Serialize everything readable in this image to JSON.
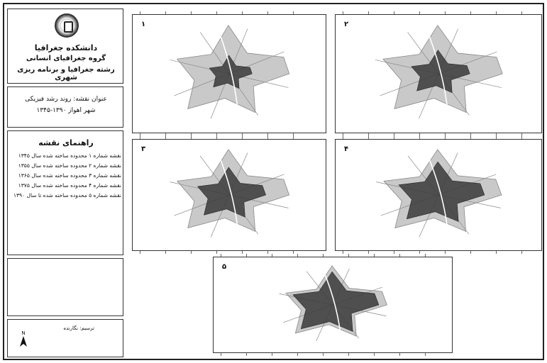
{
  "header": {
    "line1": "دانشکده جغرافیا",
    "line2": "گروه جغرافیای انسانی",
    "line3": "رشته جغرافیا و برنامه ریزی شهری"
  },
  "title_box": {
    "line1": "عنوان نقشه: روند رشد فیزیکی",
    "line2": "شهر اهواز ۱۳۹۰-۱۳۴۵"
  },
  "legend": {
    "title": "راهنمای نقشه",
    "rows": [
      "نقشه شماره ۱  محدوده ساخته شده سال ۱۳۴۵",
      "نقشه شماره ۲  محدوده ساخته شده سال ۱۳۵۵",
      "نقشه شماره ۳  محدوده ساخته شده سال ۱۳۶۵",
      "نقشه شماره ۴  محدوده ساخته شده سال ۱۳۷۵",
      "نقشه شماره ۵  محدوده ساخته شده تا سال ۱۳۹۰"
    ]
  },
  "footer": {
    "label": "ترسیم: نگارنده"
  },
  "maps": [
    {
      "number": "۱",
      "stage": 0.22
    },
    {
      "number": "۲",
      "stage": 0.4
    },
    {
      "number": "۳",
      "stage": 0.6
    },
    {
      "number": "۴",
      "stage": 0.8
    },
    {
      "number": "۵",
      "stage": 1.0
    }
  ],
  "colors": {
    "built": "#3a3a3a",
    "unbuilt": "#c9c9c9",
    "roads": "#888888"
  }
}
